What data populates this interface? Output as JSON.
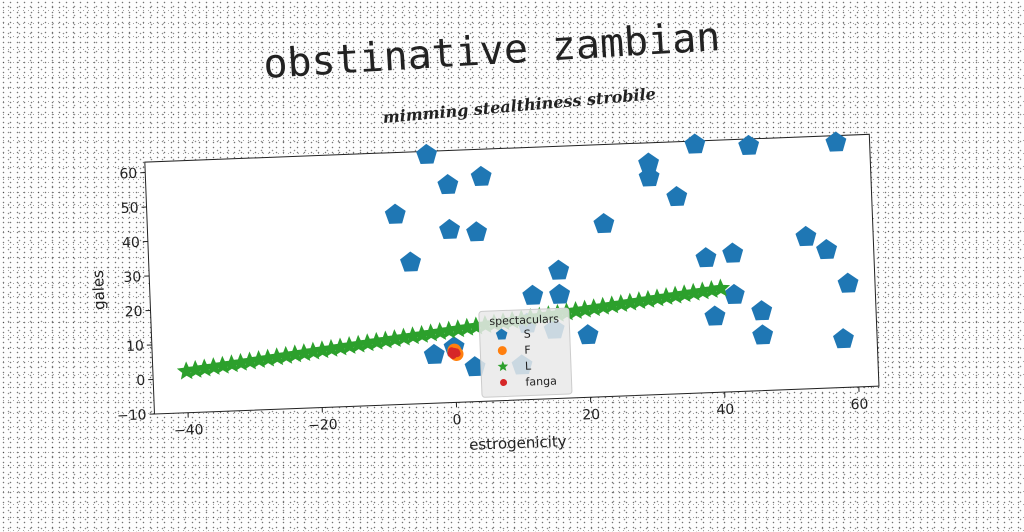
{
  "chart_data": {
    "type": "scatter",
    "title": "obstinative zambian",
    "subtitle": "mimming stealthiness strobile",
    "xlabel": "estrogenicity",
    "ylabel": "gales",
    "xlim": [
      -45,
      63
    ],
    "ylim": [
      -10,
      63
    ],
    "xticks": [
      -40,
      -20,
      0,
      20,
      40,
      60
    ],
    "yticks": [
      -10,
      0,
      10,
      20,
      30,
      40,
      50,
      60
    ],
    "legend_title": "spectaculars",
    "legend_position": "center",
    "series": [
      {
        "name": "S",
        "marker": "pentagon",
        "color": "#1f77b4",
        "points": [
          [
            -3,
            62
          ],
          [
            0,
            53
          ],
          [
            5,
            55
          ],
          [
            37,
            62
          ],
          [
            45,
            61
          ],
          [
            58,
            61
          ],
          [
            30,
            57
          ],
          [
            30,
            53
          ],
          [
            34,
            47
          ],
          [
            -8,
            45
          ],
          [
            0,
            40
          ],
          [
            4,
            39
          ],
          [
            23,
            40
          ],
          [
            -6,
            31
          ],
          [
            53,
            34
          ],
          [
            56,
            30
          ],
          [
            38,
            29
          ],
          [
            42,
            30
          ],
          [
            59,
            20
          ],
          [
            42,
            18
          ],
          [
            16,
            27
          ],
          [
            16,
            20
          ],
          [
            12,
            20
          ],
          [
            46,
            13
          ],
          [
            39,
            12
          ],
          [
            15,
            10
          ],
          [
            20,
            8
          ],
          [
            46,
            6
          ],
          [
            58,
            4
          ],
          [
            -3,
            4
          ],
          [
            0,
            6
          ],
          [
            3,
            0
          ],
          [
            10,
            0
          ],
          [
            11,
            12
          ]
        ]
      },
      {
        "name": "F",
        "marker": "circle",
        "color": "#ff7f0e",
        "points": [
          [
            0,
            5
          ],
          [
            0,
            4.5
          ],
          [
            0.3,
            4
          ]
        ]
      },
      {
        "name": "L",
        "marker": "star",
        "color": "#2ca02c",
        "line": {
          "x_start": -40,
          "x_end": 40,
          "y_start": 2,
          "y_end": 20,
          "count": 60
        }
      },
      {
        "name": "fanga",
        "marker": "dot",
        "color": "#d62728",
        "points": [
          [
            -0.5,
            4.2
          ],
          [
            0,
            4.8
          ],
          [
            0.4,
            4.1
          ],
          [
            -0.2,
            3.6
          ],
          [
            0.3,
            4.6
          ],
          [
            -0.4,
            5
          ]
        ]
      }
    ]
  }
}
